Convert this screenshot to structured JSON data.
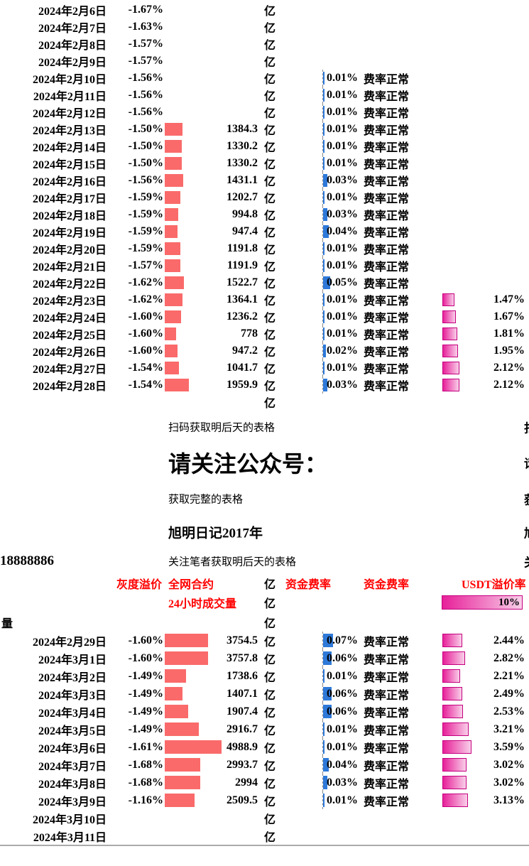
{
  "colors": {
    "header_red": "#ff0000",
    "volume_bar": "#fa6a6a",
    "funding_bar": "#2e79d9",
    "usdt_bar_start": "#e72099",
    "usdt_bar_end": "#f9cfe9",
    "usdt_bar_border": "#c4007e"
  },
  "units": {
    "yi": "亿"
  },
  "headers": {
    "premium": "灰度溢价",
    "volume1": "全网合约",
    "volume2": "24小时成交量",
    "funding_a": "资金费率",
    "funding_b": "资金费率",
    "usdt": "USDT溢价率",
    "usdt_scale": "10%"
  },
  "mid": {
    "scan_note": "扫码获取明后天的表格",
    "follow_title": "请关注公众号：",
    "complete_note": "获取完整的表格",
    "account_name": "旭明日记2017年",
    "author_note": "关注笔者获取明后天的表格",
    "phone_fragment": "18888886",
    "left_cut_label": "量"
  },
  "edge_fragments": {
    "scan": "扫",
    "follow": "请",
    "complete": "获",
    "account": "旭",
    "author": "关"
  },
  "table_top": {
    "rows": [
      {
        "date": "2024年2月6日",
        "premium": "-1.67%"
      },
      {
        "date": "2024年2月7日",
        "premium": "-1.63%"
      },
      {
        "date": "2024年2月8日",
        "premium": "-1.57%"
      },
      {
        "date": "2024年2月9日",
        "premium": "-1.57%"
      },
      {
        "date": "2024年2月10日",
        "premium": "-1.56%",
        "funding": "0.01%",
        "status": "费率正常"
      },
      {
        "date": "2024年2月11日",
        "premium": "-1.56%",
        "funding": "0.01%",
        "status": "费率正常"
      },
      {
        "date": "2024年2月12日",
        "premium": "-1.56%",
        "funding": "0.01%",
        "status": "费率正常"
      },
      {
        "date": "2024年2月13日",
        "premium": "-1.50%",
        "volume": "1384.3",
        "funding": "0.01%",
        "status": "费率正常"
      },
      {
        "date": "2024年2月14日",
        "premium": "-1.50%",
        "volume": "1330.2",
        "funding": "0.01%",
        "status": "费率正常"
      },
      {
        "date": "2024年2月15日",
        "premium": "-1.50%",
        "volume": "1330.2",
        "funding": "0.01%",
        "status": "费率正常"
      },
      {
        "date": "2024年2月16日",
        "premium": "-1.56%",
        "volume": "1431.1",
        "funding": "0.03%",
        "status": "费率正常"
      },
      {
        "date": "2024年2月17日",
        "premium": "-1.59%",
        "volume": "1202.7",
        "funding": "0.01%",
        "status": "费率正常"
      },
      {
        "date": "2024年2月18日",
        "premium": "-1.59%",
        "volume": "994.8",
        "funding": "0.03%",
        "status": "费率正常"
      },
      {
        "date": "2024年2月19日",
        "premium": "-1.59%",
        "volume": "947.4",
        "funding": "0.04%",
        "status": "费率正常"
      },
      {
        "date": "2024年2月20日",
        "premium": "-1.59%",
        "volume": "1191.8",
        "funding": "0.01%",
        "status": "费率正常"
      },
      {
        "date": "2024年2月21日",
        "premium": "-1.57%",
        "volume": "1191.9",
        "funding": "0.01%",
        "status": "费率正常"
      },
      {
        "date": "2024年2月22日",
        "premium": "-1.62%",
        "volume": "1522.7",
        "funding": "0.05%",
        "status": "费率正常"
      },
      {
        "date": "2024年2月23日",
        "premium": "-1.62%",
        "volume": "1364.1",
        "funding": "0.01%",
        "status": "费率正常",
        "usdt": "1.47%"
      },
      {
        "date": "2024年2月24日",
        "premium": "-1.60%",
        "volume": "1236.2",
        "funding": "0.01%",
        "status": "费率正常",
        "usdt": "1.67%"
      },
      {
        "date": "2024年2月25日",
        "premium": "-1.60%",
        "volume": "778",
        "funding": "0.01%",
        "status": "费率正常",
        "usdt": "1.81%"
      },
      {
        "date": "2024年2月26日",
        "premium": "-1.60%",
        "volume": "947.2",
        "funding": "0.02%",
        "status": "费率正常",
        "usdt": "1.95%"
      },
      {
        "date": "2024年2月27日",
        "premium": "-1.54%",
        "volume": "1041.7",
        "funding": "0.01%",
        "status": "费率正常",
        "usdt": "2.12%"
      },
      {
        "date": "2024年2月28日",
        "premium": "-1.54%",
        "volume": "1959.9",
        "funding": "0.03%",
        "status": "费率正常",
        "usdt": "2.12%"
      }
    ]
  },
  "table_bottom": {
    "rows": [
      {
        "date": "2024年2月29日",
        "premium": "-1.60%",
        "volume": "3754.5",
        "funding": "0.07%",
        "status": "费率正常",
        "usdt": "2.44%"
      },
      {
        "date": "2024年3月1日",
        "premium": "-1.60%",
        "volume": "3757.8",
        "funding": "0.06%",
        "status": "费率正常",
        "usdt": "2.82%"
      },
      {
        "date": "2024年3月2日",
        "premium": "-1.49%",
        "volume": "1738.6",
        "funding": "0.01%",
        "status": "费率正常",
        "usdt": "2.21%"
      },
      {
        "date": "2024年3月3日",
        "premium": "-1.49%",
        "volume": "1407.1",
        "funding": "0.06%",
        "status": "费率正常",
        "usdt": "2.49%"
      },
      {
        "date": "2024年3月4日",
        "premium": "-1.49%",
        "volume": "1907.4",
        "funding": "0.06%",
        "status": "费率正常",
        "usdt": "2.53%"
      },
      {
        "date": "2024年3月5日",
        "premium": "-1.49%",
        "volume": "2916.7",
        "funding": "0.01%",
        "status": "费率正常",
        "usdt": "3.21%"
      },
      {
        "date": "2024年3月6日",
        "premium": "-1.61%",
        "volume": "4988.9",
        "funding": "0.01%",
        "status": "费率正常",
        "usdt": "3.59%"
      },
      {
        "date": "2024年3月7日",
        "premium": "-1.68%",
        "volume": "2993.7",
        "funding": "0.04%",
        "status": "费率正常",
        "usdt": "3.02%"
      },
      {
        "date": "2024年3月8日",
        "premium": "-1.68%",
        "volume": "2994",
        "funding": "0.03%",
        "status": "费率正常",
        "usdt": "3.02%"
      },
      {
        "date": "2024年3月9日",
        "premium": "-1.16%",
        "volume": "2509.5",
        "funding": "0.01%",
        "status": "费率正常",
        "usdt": "3.13%"
      },
      {
        "date": "2024年3月10日"
      },
      {
        "date": "2024年3月11日"
      }
    ]
  }
}
